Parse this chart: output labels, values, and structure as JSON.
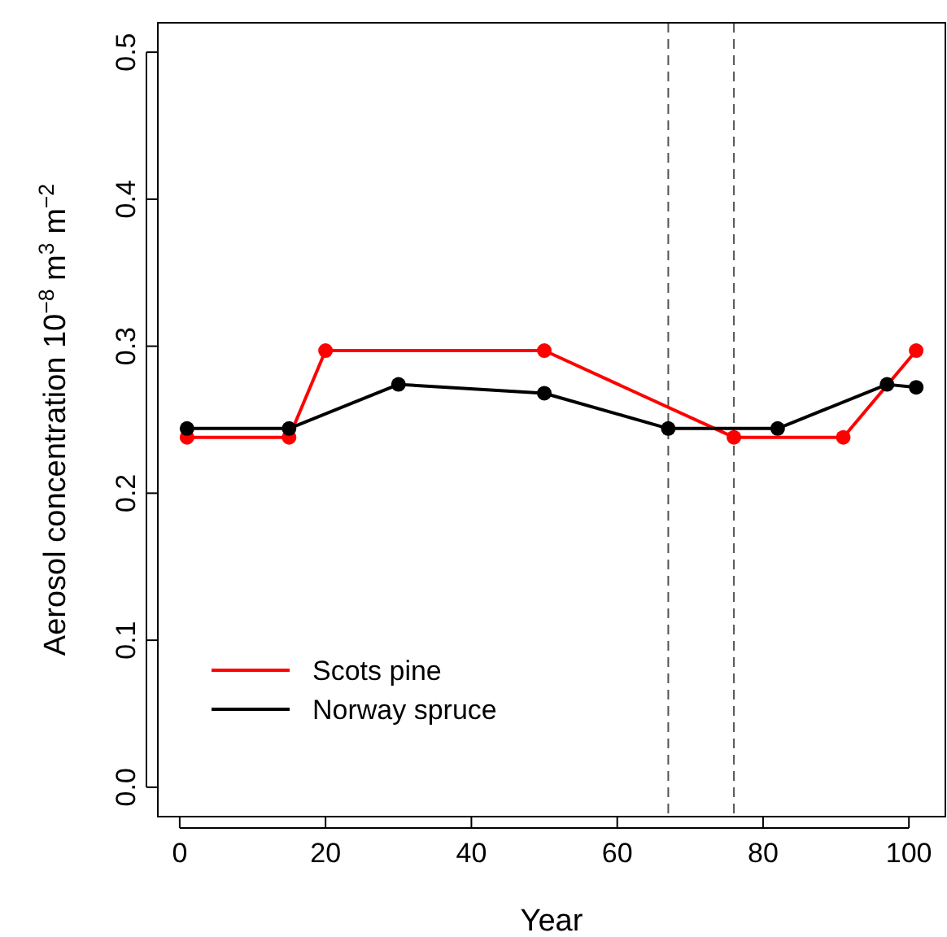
{
  "chart_data": {
    "type": "line",
    "xlabel": "Year",
    "ylabel": "Aerosol concentration 10$^{−8}$ m$^{3}$ m$^{−2}$",
    "xlim": [
      -3,
      105
    ],
    "xticks": [
      0,
      20,
      40,
      60,
      80,
      100
    ],
    "ylim": [
      -0.02,
      0.52
    ],
    "yticks": [
      {
        "value": 0,
        "label": "0.0"
      },
      {
        "value": 0.1,
        "label": "0.1"
      },
      {
        "value": 0.2,
        "label": "0.2"
      },
      {
        "value": 0.3,
        "label": "0.3"
      },
      {
        "value": 0.4,
        "label": "0.4"
      },
      {
        "value": 0.5,
        "label": "0.5"
      }
    ],
    "series": [
      {
        "name": "Scots pine",
        "color": "#ff0000",
        "x": [
          1,
          15,
          20,
          50,
          76,
          91,
          101
        ],
        "values": [
          0.238,
          0.238,
          0.297,
          0.297,
          0.238,
          0.238,
          0.297
        ]
      },
      {
        "name": "Norway spruce",
        "color": "#000000",
        "x": [
          1,
          15,
          30,
          50,
          67,
          82,
          97,
          101
        ],
        "values": [
          0.244,
          0.244,
          0.274,
          0.268,
          0.244,
          0.244,
          0.274,
          0.272
        ]
      }
    ],
    "ref_lines": [
      {
        "axis": "x",
        "value": 67,
        "color": "#555555",
        "line_style": "dashed"
      },
      {
        "axis": "x",
        "value": 76,
        "color": "#555555",
        "line_style": "dashed"
      }
    ],
    "marker": "circle",
    "line_style": "solid",
    "grid": false,
    "legend": "bottom left"
  }
}
